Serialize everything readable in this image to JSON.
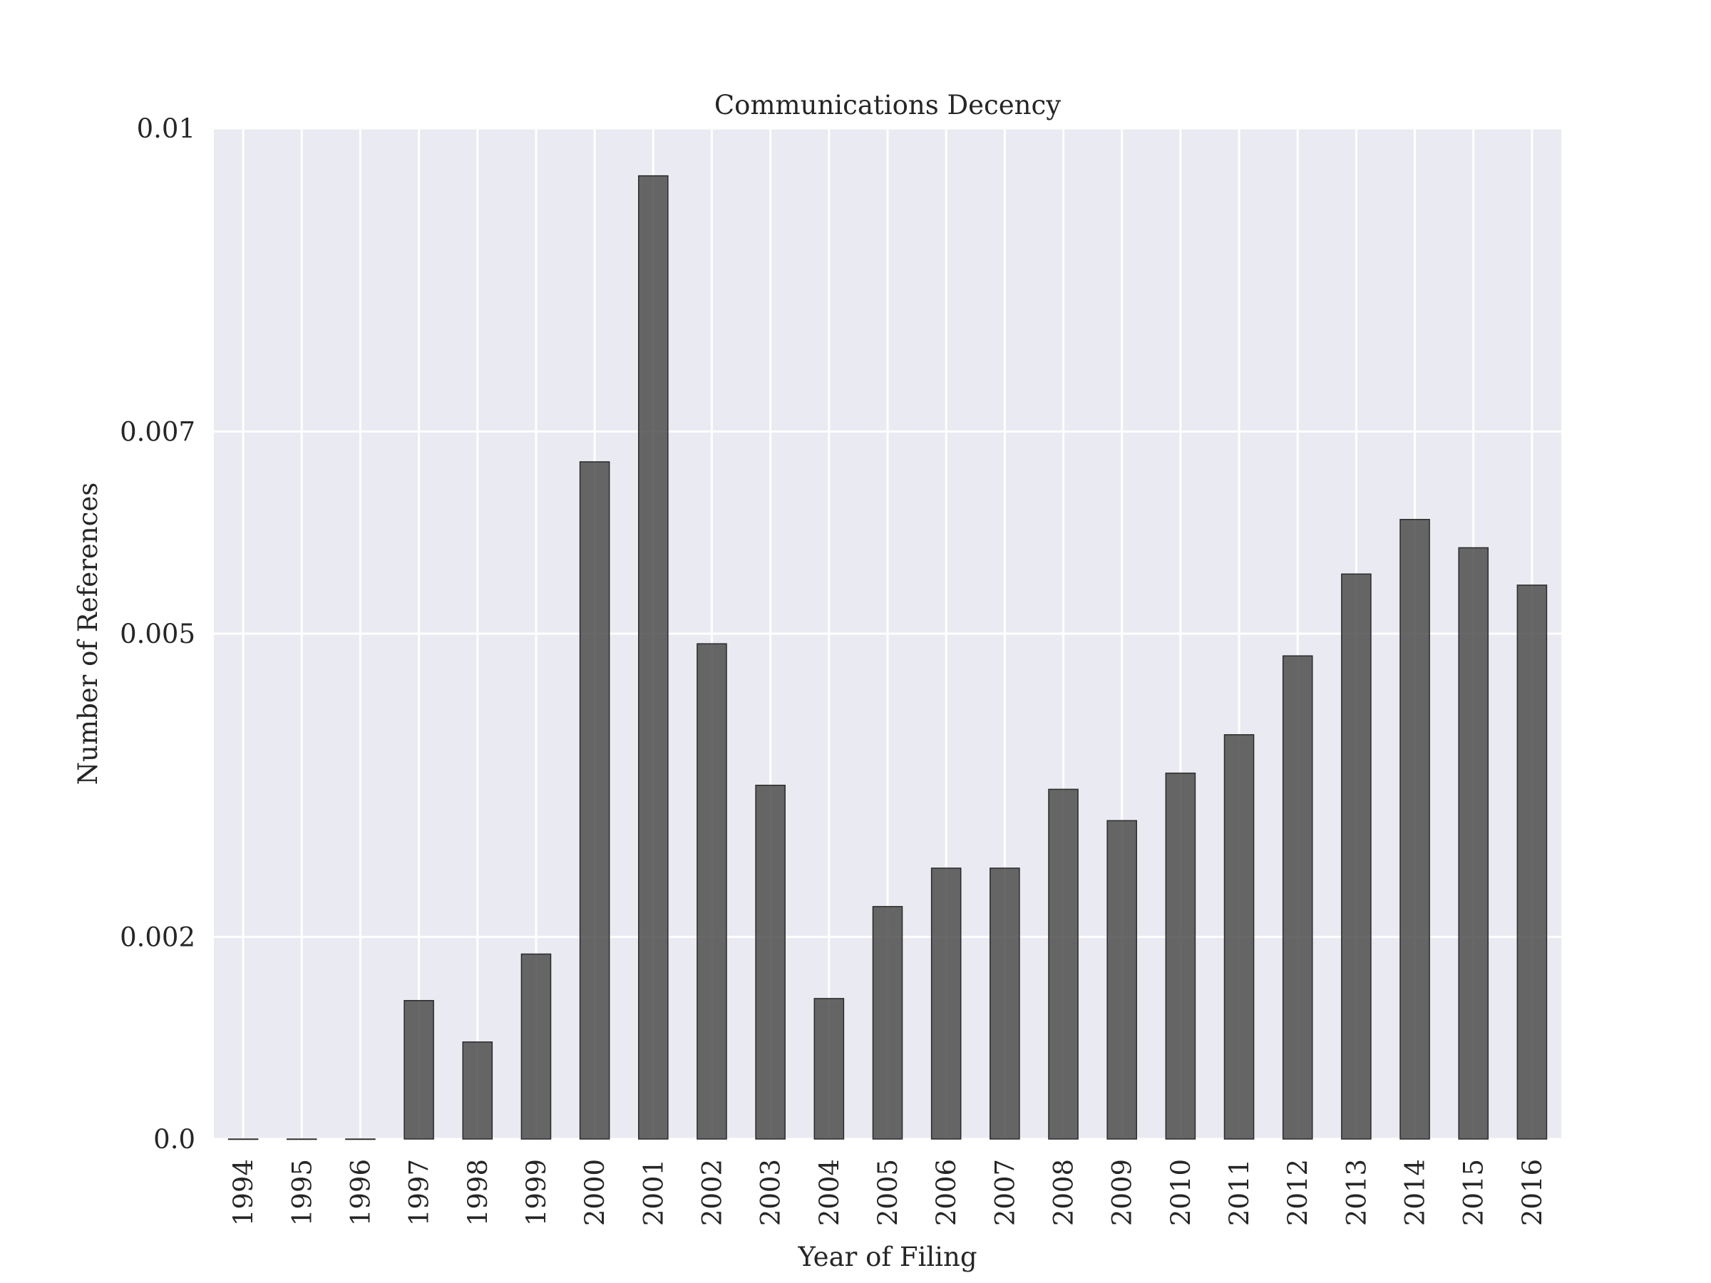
{
  "chart_data": {
    "type": "bar",
    "title": "Communications Decency",
    "xlabel": "Year of Filing",
    "ylabel": "Number of References",
    "categories": [
      "1994",
      "1995",
      "1996",
      "1997",
      "1998",
      "1999",
      "2000",
      "2001",
      "2002",
      "2003",
      "2004",
      "2005",
      "2006",
      "2007",
      "2008",
      "2009",
      "2010",
      "2011",
      "2012",
      "2013",
      "2014",
      "2015",
      "2016"
    ],
    "values": [
      0.0,
      0.0,
      0.0,
      0.00137,
      0.00096,
      0.00183,
      0.0067,
      0.00953,
      0.0049,
      0.0035,
      0.00139,
      0.0023,
      0.00268,
      0.00268,
      0.00346,
      0.00315,
      0.00362,
      0.004,
      0.00478,
      0.00559,
      0.00613,
      0.00585,
      0.00548
    ],
    "yticks": [
      0.0,
      0.002,
      0.005,
      0.007,
      0.01
    ],
    "ytick_labels": [
      "0.0",
      "0.002",
      "0.005",
      "0.007",
      "0.01"
    ],
    "ylim": [
      0,
      0.01
    ],
    "grid": true,
    "colors": {
      "plot_background": "#eaeaf2",
      "bar": "#4d4d4d",
      "grid": "#ffffff"
    }
  }
}
